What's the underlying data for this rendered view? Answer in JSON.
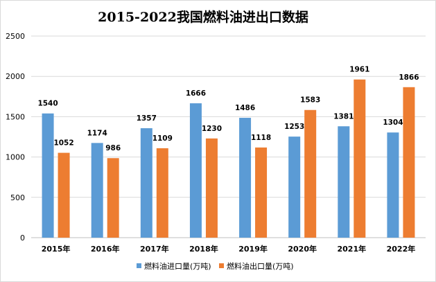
{
  "chart_data": {
    "type": "bar",
    "title": "2015-2022我国燃料油进出口数据",
    "categories": [
      "2015年",
      "2016年",
      "2017年",
      "2018年",
      "2019年",
      "2020年",
      "2021年",
      "2022年"
    ],
    "series": [
      {
        "name": "燃料油进口量(万吨)",
        "color": "#5b9bd5",
        "values": [
          1540,
          1174,
          1357,
          1666,
          1486,
          1253,
          1381,
          1304
        ]
      },
      {
        "name": "燃料油出口量(万吨)",
        "color": "#ed7d31",
        "values": [
          1052,
          986,
          1109,
          1230,
          1118,
          1583,
          1961,
          1866
        ]
      }
    ],
    "ylim": [
      0,
      2500
    ],
    "yticks": [
      0,
      500,
      1000,
      1500,
      2000,
      2500
    ],
    "grid": true,
    "legend_position": "bottom"
  }
}
